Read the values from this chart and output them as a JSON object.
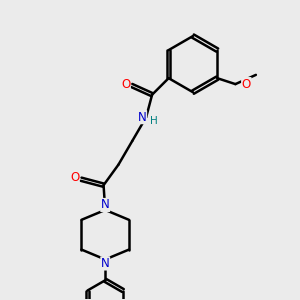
{
  "background_color": "#ebebeb",
  "bond_color": "#000000",
  "bond_width": 1.8,
  "atom_colors": {
    "O": "#ff0000",
    "N": "#0000cc",
    "H": "#008080",
    "C": "#000000"
  },
  "font_size_atoms": 8.5,
  "font_size_H": 7.5
}
